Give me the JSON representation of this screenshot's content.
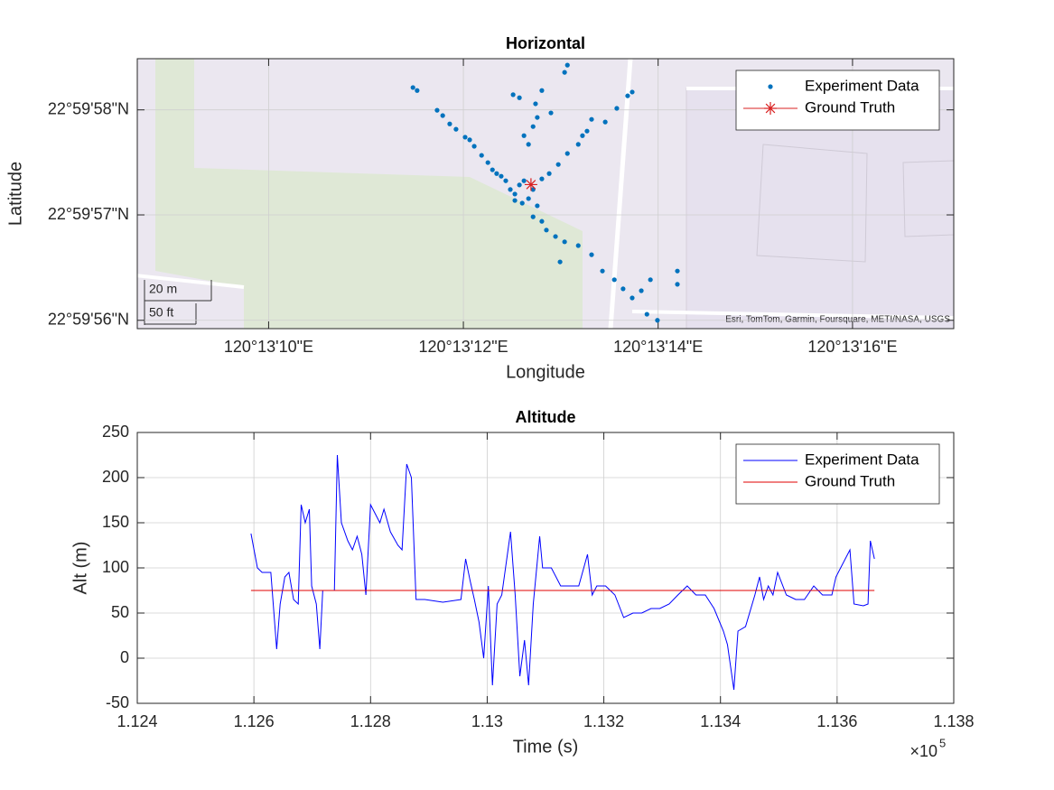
{
  "chart_data": [
    {
      "type": "scatter",
      "title": "Horizontal",
      "xlabel": "Longitude",
      "ylabel": "Latitude",
      "xlim": [
        120.219069,
        120.2214
      ],
      "ylim": [
        22.998867,
        22.999579
      ],
      "xticks": [
        {
          "value": 120.219444,
          "label": "120°13'10\"E"
        },
        {
          "value": 120.22,
          "label": "120°13'12\"E"
        },
        {
          "value": 120.220556,
          "label": "120°13'14\"E"
        },
        {
          "value": 120.221111,
          "label": "120°13'16\"E"
        }
      ],
      "yticks": [
        {
          "value": 22.998889,
          "label": "22°59'56\"N"
        },
        {
          "value": 22.999167,
          "label": "22°59'57\"N"
        },
        {
          "value": 22.999444,
          "label": "22°59'58\"N"
        }
      ],
      "grid": true,
      "legend": "northeast",
      "scale_labels": [
        "20 m",
        "50 ft"
      ],
      "attribution": "Esri, TomTom, Garmin, Foursquare, METI/NASA, USGS",
      "series": [
        {
          "name": "Experiment Data",
          "color": "#0072bd",
          "marker": "dot",
          "x": [
            120.219856,
            120.219868,
            120.219925,
            120.219941,
            120.219979,
            120.220005,
            120.220031,
            120.220052,
            120.22007,
            120.220083,
            120.220095,
            120.220018,
            120.219961,
            120.220482,
            120.220469,
            120.220438,
            120.220405,
            120.220366,
            120.220353,
            120.220328,
            120.220297,
            120.220271,
            120.220245,
            120.220224,
            120.22034,
            120.220297,
            120.220289,
            120.220224,
            120.220211,
            120.220199,
            120.220173,
            120.22016,
            120.220142,
            120.220186,
            120.220206,
            120.22025,
            120.220121,
            120.220134,
            120.220147,
            120.22016,
            120.220173,
            120.220199,
            120.220186,
            120.220168,
            120.220211,
            120.220147,
            120.220108,
            120.220199,
            120.220224,
            120.220237,
            120.220263,
            120.220289,
            120.220328,
            120.220366,
            120.220397,
            120.220431,
            120.220456,
            120.220482,
            120.220508,
            120.220524,
            120.220554,
            120.220611,
            120.220611,
            120.220534,
            120.220276
          ],
          "values": [
            22.999503,
            22.999495,
            22.999443,
            22.999429,
            22.999393,
            22.999372,
            22.999348,
            22.999324,
            22.999305,
            22.999286,
            22.999276,
            22.999365,
            22.999407,
            22.999491,
            22.999481,
            22.999448,
            22.999412,
            22.999419,
            22.999388,
            22.999353,
            22.999329,
            22.9993,
            22.999276,
            22.999262,
            22.999376,
            22.999562,
            22.999543,
            22.999495,
            22.999424,
            22.9994,
            22.999376,
            22.999476,
            22.999484,
            22.999353,
            22.99946,
            22.999436,
            22.999257,
            22.999234,
            22.999222,
            22.999246,
            22.999257,
            22.999234,
            22.99921,
            22.999198,
            22.999191,
            22.999205,
            22.999269,
            22.999162,
            22.99915,
            22.999127,
            22.99911,
            22.999096,
            22.999086,
            22.999062,
            22.999019,
            22.998996,
            22.998972,
            22.998948,
            22.998967,
            22.998905,
            22.998889,
            22.999019,
            22.998984,
            22.998996,
            22.999043
          ]
        },
        {
          "name": "Ground Truth",
          "color": "#d92020",
          "marker": "asterisk",
          "x": [
            120.220193
          ],
          "values": [
            22.999247
          ]
        }
      ]
    },
    {
      "type": "line",
      "title": "Altitude",
      "xlabel": "Time (s)",
      "ylabel": "Alt (m)",
      "xlim": [
        112400,
        113800
      ],
      "ylim": [
        -50,
        250
      ],
      "xticks": [
        {
          "value": 112400,
          "label": "1.124"
        },
        {
          "value": 112600,
          "label": "1.126"
        },
        {
          "value": 112800,
          "label": "1.128"
        },
        {
          "value": 113000,
          "label": "1.13"
        },
        {
          "value": 113200,
          "label": "1.132"
        },
        {
          "value": 113400,
          "label": "1.134"
        },
        {
          "value": 113600,
          "label": "1.136"
        },
        {
          "value": 113800,
          "label": "1.138"
        }
      ],
      "yticks": [
        -50,
        0,
        50,
        100,
        150,
        200,
        250
      ],
      "x_multiplier": {
        "base": "×10",
        "exponent": "5"
      },
      "grid": true,
      "legend": "northeast",
      "series": [
        {
          "name": "Experiment Data",
          "color": "#0000ff",
          "x": [
            112595,
            112606,
            112614,
            112629,
            112639,
            112645,
            112653,
            112660,
            112668,
            112676,
            112681,
            112688,
            112695,
            112699,
            112707,
            112713,
            112718,
            112726,
            112738,
            112743,
            112750,
            112761,
            112769,
            112777,
            112785,
            112792,
            112800,
            112816,
            112823,
            112834,
            112847,
            112854,
            112862,
            112870,
            112878,
            112893,
            112924,
            112955,
            112963,
            112971,
            112978,
            112986,
            112994,
            113002,
            113009,
            113017,
            113025,
            113040,
            113048,
            113056,
            113064,
            113071,
            113079,
            113090,
            113095,
            113110,
            113126,
            113141,
            113157,
            113172,
            113180,
            113188,
            113203,
            113219,
            113234,
            113250,
            113265,
            113281,
            113296,
            113312,
            113327,
            113343,
            113358,
            113374,
            113389,
            113405,
            113412,
            113423,
            113430,
            113443,
            113459,
            113467,
            113474,
            113482,
            113490,
            113498,
            113513,
            113529,
            113544,
            113560,
            113575,
            113591,
            113598,
            113606,
            113622,
            113629,
            113645,
            113653,
            113657,
            113664
          ],
          "values": [
            138,
            100,
            95,
            95,
            10,
            60,
            90,
            95,
            65,
            60,
            170,
            150,
            165,
            80,
            60,
            10,
            75,
            75,
            75,
            225,
            150,
            130,
            120,
            135,
            115,
            70,
            170,
            150,
            165,
            140,
            125,
            120,
            215,
            200,
            65,
            65,
            62,
            65,
            110,
            85,
            65,
            40,
            0,
            80,
            -30,
            60,
            70,
            140,
            70,
            -20,
            20,
            -30,
            60,
            135,
            100,
            100,
            80,
            80,
            80,
            115,
            70,
            80,
            80,
            70,
            45,
            50,
            50,
            55,
            55,
            60,
            70,
            80,
            70,
            70,
            55,
            30,
            15,
            -35,
            30,
            35,
            70,
            90,
            65,
            80,
            70,
            95,
            70,
            65,
            65,
            80,
            70,
            70,
            90,
            100,
            120,
            60,
            58,
            60,
            130,
            110
          ]
        },
        {
          "name": "Ground Truth",
          "color": "#e00000",
          "x": [
            112595,
            113664
          ],
          "values": [
            75,
            75
          ]
        }
      ]
    }
  ]
}
